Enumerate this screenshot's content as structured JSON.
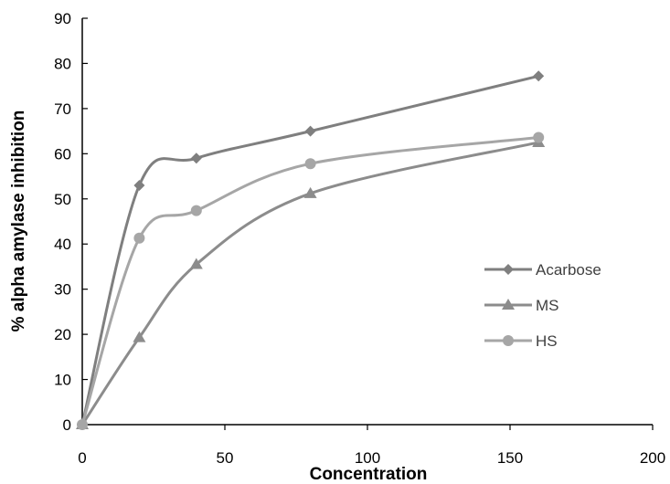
{
  "chart_data": {
    "type": "line",
    "title": "",
    "xlabel": "Concentration",
    "ylabel": "% alpha amylase inhibition",
    "xlim": [
      0,
      200
    ],
    "ylim": [
      0,
      90
    ],
    "x_ticks": [
      0,
      50,
      100,
      150,
      200
    ],
    "y_ticks": [
      0,
      10,
      20,
      30,
      40,
      50,
      60,
      70,
      80,
      90
    ],
    "grid": false,
    "smooth": true,
    "legend_position": "right",
    "series": [
      {
        "name": "Acarbose",
        "marker": "diamond",
        "color": "#7f7f7f",
        "x": [
          0,
          20,
          40,
          80,
          160
        ],
        "y": [
          0,
          53,
          59,
          65,
          77.2
        ]
      },
      {
        "name": "MS",
        "marker": "triangle",
        "color": "#8c8c8c",
        "x": [
          0,
          20,
          40,
          80,
          160
        ],
        "y": [
          0,
          19.3,
          35.5,
          51.2,
          62.5
        ]
      },
      {
        "name": "HS",
        "marker": "circle",
        "color": "#a6a6a6",
        "x": [
          0,
          20,
          40,
          80,
          160
        ],
        "y": [
          0,
          41.3,
          47.4,
          57.8,
          63.6
        ]
      }
    ]
  }
}
